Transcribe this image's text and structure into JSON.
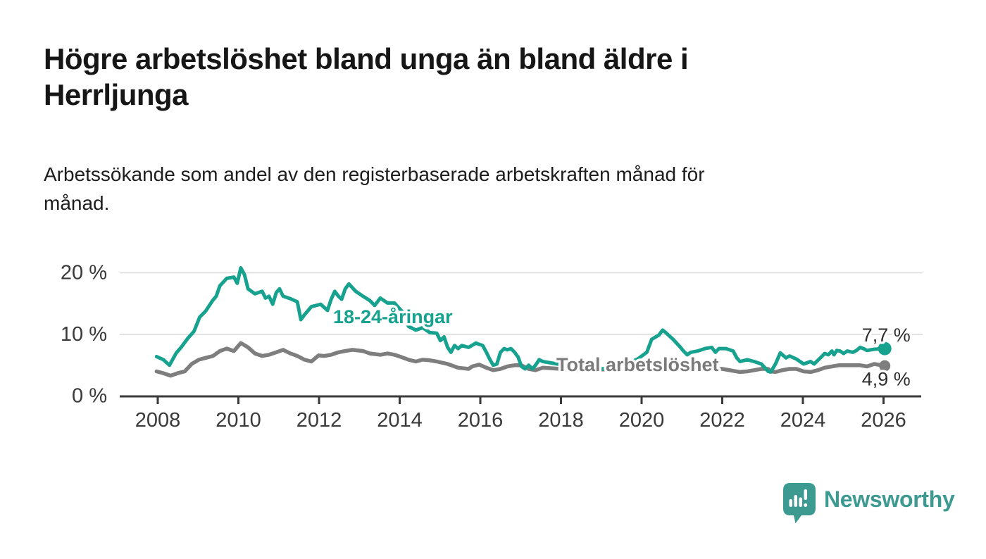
{
  "title": "Högre arbetslöshet bland unga än bland äldre i Herrljunga",
  "subtitle": "Arbetssökande som andel av den registerbaserade arbetskraften månad för månad.",
  "colors": {
    "accent_teal": "#16a28e",
    "series_gray": "#7e7e7e",
    "axis": "#3a3a3a",
    "grid": "#d9d9d9",
    "value_label": "#2e2e2e",
    "logo_teal": "#3d9a91"
  },
  "footer": {
    "brand": "Newsworthy"
  },
  "chart_data": {
    "type": "line",
    "grid": "horizontal",
    "legend": "inline-labels",
    "x_axis": {
      "min": 2007.8,
      "max": 2027.0,
      "ticks": [
        2008,
        2010,
        2012,
        2014,
        2016,
        2018,
        2020,
        2022,
        2024,
        2026
      ]
    },
    "y_axis": {
      "min": 0,
      "max": 22.9,
      "tick_values": [
        0,
        10,
        20
      ],
      "tick_labels": [
        "0 %",
        "10 %",
        "20 %"
      ]
    },
    "series": [
      {
        "id": "total",
        "name": "Total arbetslöshet",
        "color": "#7e7e7e",
        "end_label": "4,9 %",
        "end_value": 4.9,
        "points": [
          [
            2007.97,
            4.0
          ],
          [
            2008.14,
            3.7
          ],
          [
            2008.32,
            3.3
          ],
          [
            2008.49,
            3.7
          ],
          [
            2008.67,
            4.0
          ],
          [
            2008.84,
            5.2
          ],
          [
            2009.02,
            5.9
          ],
          [
            2009.19,
            6.2
          ],
          [
            2009.37,
            6.5
          ],
          [
            2009.54,
            7.3
          ],
          [
            2009.71,
            7.7
          ],
          [
            2009.89,
            7.3
          ],
          [
            2010.06,
            8.6
          ],
          [
            2010.24,
            7.9
          ],
          [
            2010.41,
            6.9
          ],
          [
            2010.59,
            6.5
          ],
          [
            2010.76,
            6.7
          ],
          [
            2010.94,
            7.1
          ],
          [
            2011.11,
            7.5
          ],
          [
            2011.29,
            6.9
          ],
          [
            2011.46,
            6.5
          ],
          [
            2011.64,
            5.9
          ],
          [
            2011.81,
            5.6
          ],
          [
            2011.99,
            6.6
          ],
          [
            2012.13,
            6.5
          ],
          [
            2012.3,
            6.7
          ],
          [
            2012.48,
            7.1
          ],
          [
            2012.65,
            7.3
          ],
          [
            2012.83,
            7.5
          ],
          [
            2013.09,
            7.3
          ],
          [
            2013.26,
            6.9
          ],
          [
            2013.52,
            6.7
          ],
          [
            2013.7,
            6.9
          ],
          [
            2013.87,
            6.7
          ],
          [
            2014.05,
            6.3
          ],
          [
            2014.22,
            5.9
          ],
          [
            2014.4,
            5.6
          ],
          [
            2014.57,
            5.9
          ],
          [
            2014.75,
            5.8
          ],
          [
            2014.92,
            5.6
          ],
          [
            2015.19,
            5.2
          ],
          [
            2015.45,
            4.6
          ],
          [
            2015.71,
            4.4
          ],
          [
            2015.8,
            4.8
          ],
          [
            2015.97,
            5.1
          ],
          [
            2016.15,
            4.6
          ],
          [
            2016.32,
            4.2
          ],
          [
            2016.5,
            4.4
          ],
          [
            2016.67,
            4.8
          ],
          [
            2016.85,
            5.0
          ],
          [
            2017.02,
            5.0
          ],
          [
            2017.2,
            4.4
          ],
          [
            2017.37,
            4.2
          ],
          [
            2017.55,
            4.6
          ],
          [
            2018.0,
            4.4
          ],
          [
            2018.5,
            4.2
          ],
          [
            2019.0,
            4.3
          ],
          [
            2019.5,
            4.4
          ],
          [
            2020.0,
            4.8
          ],
          [
            2020.5,
            5.2
          ],
          [
            2021.0,
            5.0
          ],
          [
            2021.5,
            4.6
          ],
          [
            2022.0,
            4.4
          ],
          [
            2022.44,
            3.9
          ],
          [
            2022.62,
            4.0
          ],
          [
            2022.79,
            4.2
          ],
          [
            2022.97,
            4.4
          ],
          [
            2023.14,
            4.4
          ],
          [
            2023.2,
            4.0
          ],
          [
            2023.32,
            3.9
          ],
          [
            2023.49,
            4.2
          ],
          [
            2023.67,
            4.4
          ],
          [
            2023.84,
            4.4
          ],
          [
            2024.02,
            4.0
          ],
          [
            2024.19,
            3.9
          ],
          [
            2024.37,
            4.2
          ],
          [
            2024.54,
            4.6
          ],
          [
            2024.72,
            4.8
          ],
          [
            2024.89,
            5.0
          ],
          [
            2025.07,
            5.0
          ],
          [
            2025.24,
            5.0
          ],
          [
            2025.42,
            5.0
          ],
          [
            2025.59,
            4.8
          ],
          [
            2025.77,
            5.2
          ],
          [
            2026.03,
            4.9
          ]
        ]
      },
      {
        "id": "youth",
        "name": "18-24-åringar",
        "color": "#16a28e",
        "end_label": "7,7 %",
        "end_value": 7.7,
        "points": [
          [
            2007.97,
            6.4
          ],
          [
            2008.14,
            5.9
          ],
          [
            2008.29,
            5.0
          ],
          [
            2008.46,
            7.0
          ],
          [
            2008.58,
            7.9
          ],
          [
            2008.75,
            9.4
          ],
          [
            2008.9,
            10.5
          ],
          [
            2009.04,
            12.8
          ],
          [
            2009.19,
            13.8
          ],
          [
            2009.36,
            15.5
          ],
          [
            2009.45,
            16.2
          ],
          [
            2009.54,
            17.9
          ],
          [
            2009.71,
            19.1
          ],
          [
            2009.89,
            19.3
          ],
          [
            2009.97,
            18.3
          ],
          [
            2010.06,
            20.8
          ],
          [
            2010.15,
            19.7
          ],
          [
            2010.24,
            17.4
          ],
          [
            2010.41,
            16.6
          ],
          [
            2010.59,
            17.0
          ],
          [
            2010.67,
            15.9
          ],
          [
            2010.76,
            16.2
          ],
          [
            2010.85,
            14.9
          ],
          [
            2010.94,
            16.8
          ],
          [
            2011.02,
            17.4
          ],
          [
            2011.11,
            16.2
          ],
          [
            2011.29,
            15.8
          ],
          [
            2011.46,
            15.3
          ],
          [
            2011.55,
            12.4
          ],
          [
            2011.64,
            13.2
          ],
          [
            2011.81,
            14.5
          ],
          [
            2011.99,
            14.8
          ],
          [
            2012.04,
            14.9
          ],
          [
            2012.21,
            13.9
          ],
          [
            2012.3,
            15.7
          ],
          [
            2012.39,
            17.0
          ],
          [
            2012.48,
            16.2
          ],
          [
            2012.56,
            15.7
          ],
          [
            2012.65,
            17.4
          ],
          [
            2012.74,
            18.2
          ],
          [
            2012.91,
            17.0
          ],
          [
            2013.09,
            16.2
          ],
          [
            2013.26,
            15.5
          ],
          [
            2013.38,
            14.7
          ],
          [
            2013.52,
            15.9
          ],
          [
            2013.7,
            15.1
          ],
          [
            2013.87,
            15.1
          ],
          [
            2014.05,
            13.8
          ],
          [
            2014.22,
            11.3
          ],
          [
            2014.4,
            10.7
          ],
          [
            2014.57,
            11.1
          ],
          [
            2014.75,
            10.3
          ],
          [
            2014.92,
            10.2
          ],
          [
            2015.01,
            9.0
          ],
          [
            2015.1,
            9.6
          ],
          [
            2015.19,
            7.9
          ],
          [
            2015.27,
            7.1
          ],
          [
            2015.36,
            8.2
          ],
          [
            2015.45,
            7.7
          ],
          [
            2015.54,
            8.2
          ],
          [
            2015.71,
            7.9
          ],
          [
            2015.89,
            8.6
          ],
          [
            2016.06,
            8.2
          ],
          [
            2016.15,
            7.1
          ],
          [
            2016.24,
            5.9
          ],
          [
            2016.32,
            5.0
          ],
          [
            2016.41,
            5.2
          ],
          [
            2016.5,
            7.1
          ],
          [
            2016.59,
            7.7
          ],
          [
            2016.67,
            7.5
          ],
          [
            2016.76,
            7.7
          ],
          [
            2016.85,
            7.1
          ],
          [
            2016.94,
            6.3
          ],
          [
            2017.02,
            4.8
          ],
          [
            2017.11,
            4.4
          ],
          [
            2017.2,
            5.0
          ],
          [
            2017.29,
            4.4
          ],
          [
            2017.37,
            5.0
          ],
          [
            2017.46,
            5.9
          ],
          [
            2017.55,
            5.6
          ],
          [
            2018.0,
            5.1
          ],
          [
            2018.5,
            4.7
          ],
          [
            2019.0,
            4.4
          ],
          [
            2019.5,
            4.8
          ],
          [
            2019.9,
            6.0
          ],
          [
            2020.13,
            7.1
          ],
          [
            2020.25,
            9.2
          ],
          [
            2020.43,
            9.9
          ],
          [
            2020.52,
            10.7
          ],
          [
            2020.6,
            10.3
          ],
          [
            2020.78,
            9.2
          ],
          [
            2020.95,
            8.0
          ],
          [
            2021.04,
            7.3
          ],
          [
            2021.13,
            6.7
          ],
          [
            2021.22,
            7.1
          ],
          [
            2021.39,
            7.3
          ],
          [
            2021.57,
            7.7
          ],
          [
            2021.74,
            7.9
          ],
          [
            2021.83,
            7.1
          ],
          [
            2021.92,
            7.7
          ],
          [
            2022.09,
            7.7
          ],
          [
            2022.27,
            7.3
          ],
          [
            2022.36,
            6.2
          ],
          [
            2022.44,
            5.6
          ],
          [
            2022.62,
            5.9
          ],
          [
            2022.79,
            5.6
          ],
          [
            2022.97,
            5.2
          ],
          [
            2023.14,
            4.0
          ],
          [
            2023.2,
            3.9
          ],
          [
            2023.32,
            5.2
          ],
          [
            2023.44,
            7.0
          ],
          [
            2023.58,
            6.2
          ],
          [
            2023.67,
            6.5
          ],
          [
            2023.84,
            6.0
          ],
          [
            2024.02,
            5.2
          ],
          [
            2024.19,
            5.6
          ],
          [
            2024.28,
            5.2
          ],
          [
            2024.37,
            5.8
          ],
          [
            2024.45,
            6.3
          ],
          [
            2024.54,
            6.9
          ],
          [
            2024.63,
            6.7
          ],
          [
            2024.72,
            7.3
          ],
          [
            2024.77,
            6.7
          ],
          [
            2024.84,
            7.4
          ],
          [
            2024.92,
            7.3
          ],
          [
            2025.01,
            6.9
          ],
          [
            2025.1,
            7.3
          ],
          [
            2025.24,
            7.1
          ],
          [
            2025.33,
            7.4
          ],
          [
            2025.42,
            7.9
          ],
          [
            2025.5,
            7.7
          ],
          [
            2025.59,
            7.4
          ],
          [
            2025.77,
            7.6
          ],
          [
            2026.03,
            7.7
          ]
        ]
      }
    ]
  }
}
